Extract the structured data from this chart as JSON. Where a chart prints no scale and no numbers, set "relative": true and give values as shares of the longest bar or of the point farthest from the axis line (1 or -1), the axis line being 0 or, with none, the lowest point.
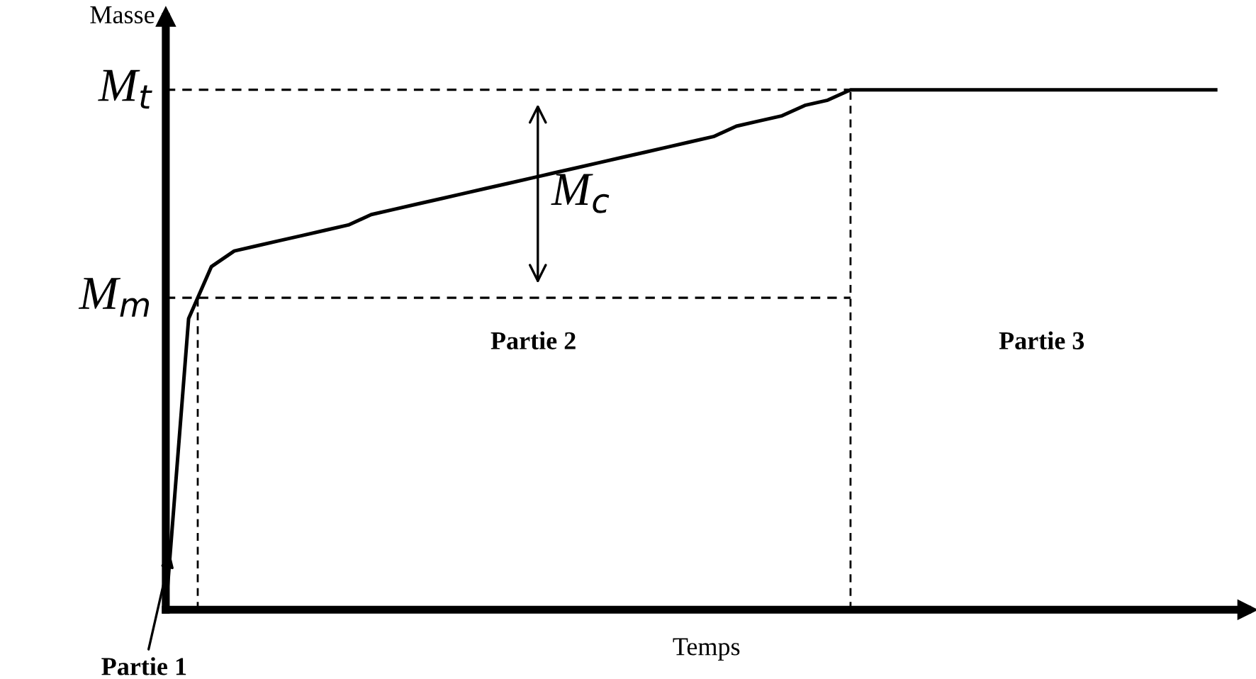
{
  "chart_data": {
    "type": "line",
    "relative": true,
    "xlabel": "Temps",
    "ylabel": "Masse",
    "categories": [
      null,
      null,
      null,
      null,
      null,
      null,
      null,
      null,
      null,
      null,
      null,
      null,
      null,
      null,
      null,
      null,
      null,
      null,
      null,
      null,
      null,
      null,
      null,
      null,
      null,
      null,
      null,
      null,
      null,
      null,
      null,
      null,
      null,
      null,
      null,
      null,
      null,
      null,
      null,
      null,
      null,
      null,
      null,
      null,
      null,
      null,
      null
    ],
    "series": [
      {
        "color": "#000000",
        "values": [
          0,
          0.56,
          0.66,
          0.69,
          0.7,
          0.71,
          0.72,
          0.73,
          0.74,
          0.76,
          0.77,
          0.78,
          0.79,
          0.8,
          0.81,
          0.82,
          0.83,
          0.84,
          0.85,
          0.86,
          0.87,
          0.88,
          0.89,
          0.9,
          0.91,
          0.93,
          0.94,
          0.95,
          0.97,
          0.98,
          1.0,
          1.0,
          1.0,
          1.0,
          1.0,
          1.0,
          1.0,
          1.0,
          1.0,
          1.0,
          1.0,
          1.0,
          1.0,
          1.0,
          1.0,
          1.0,
          1.0
        ]
      }
    ],
    "ref_lines": [
      {
        "axis": "y",
        "value": 1.0,
        "label": "M$_{t}$",
        "line_style": "dashed"
      },
      {
        "axis": "y",
        "value": 0.6,
        "label": "M$_{m}$",
        "line_style": "dashed"
      }
    ],
    "annotations": [
      "Partie 1",
      "Partie 2",
      "Partie 3",
      "M$_{c}$"
    ],
    "marker": "none",
    "line_style": "solid"
  }
}
